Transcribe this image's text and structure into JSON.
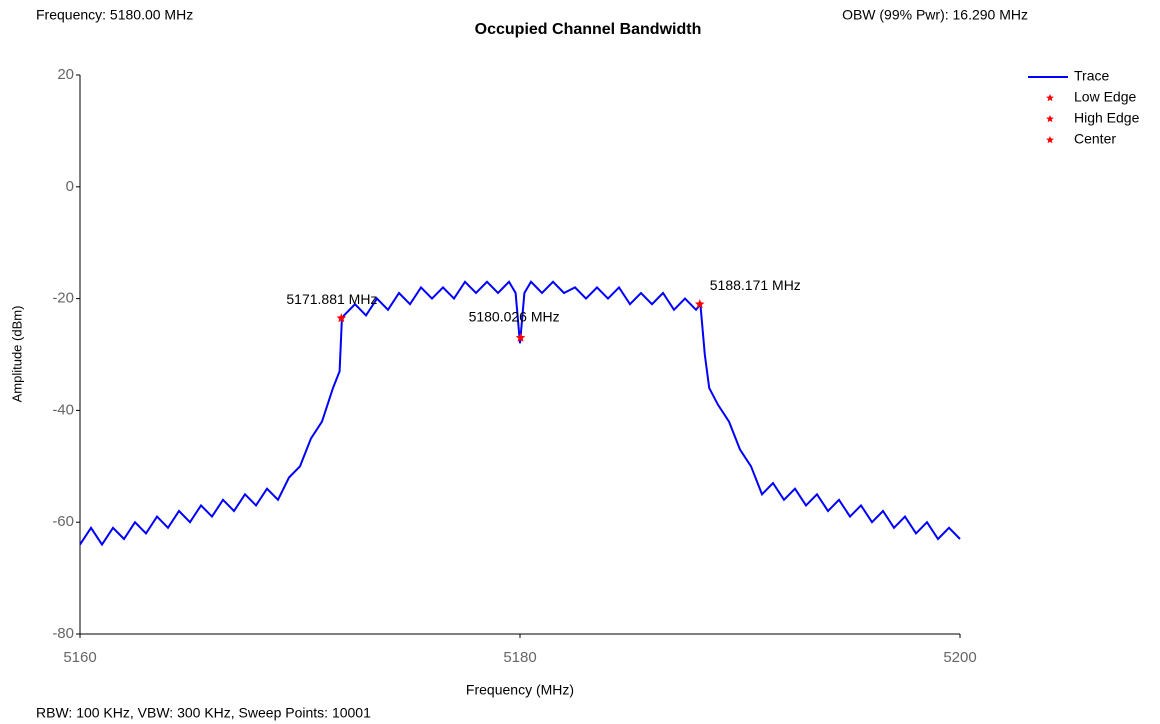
{
  "chart_data": {
    "type": "line",
    "title": "Occupied Channel Bandwidth",
    "top_left": "Frequency: 5180.00 MHz",
    "top_right": "OBW (99% Pwr): 16.290 MHz",
    "footer": "RBW: 100 KHz,  VBW: 300 KHz,  Sweep Points: 10001",
    "x_label": "Frequency (MHz)",
    "y_label": "Amplitude (dBm)",
    "xlim": [
      5160,
      5200
    ],
    "xticks": [
      5160,
      5180,
      5200
    ],
    "ylim": [
      -80,
      20
    ],
    "yticks": [
      20,
      0,
      -20,
      -40,
      -60,
      -80
    ],
    "grid": false,
    "legend": "upper right",
    "series": [
      {
        "name": "Trace",
        "color": "#0000ff",
        "x": [
          5160,
          5160.5,
          5161,
          5161.5,
          5162,
          5162.5,
          5163,
          5163.5,
          5164,
          5164.5,
          5165,
          5165.5,
          5166,
          5166.5,
          5167,
          5167.5,
          5168,
          5168.5,
          5169,
          5169.5,
          5170,
          5170.5,
          5171,
          5171.5,
          5171.8,
          5171.9,
          5172,
          5172.5,
          5173,
          5173.5,
          5174,
          5174.5,
          5175,
          5175.5,
          5176,
          5176.5,
          5177,
          5177.5,
          5178,
          5178.5,
          5179,
          5179.5,
          5179.8,
          5180,
          5180.2,
          5180.5,
          5181,
          5181.5,
          5182,
          5182.5,
          5183,
          5183.5,
          5184,
          5184.5,
          5185,
          5185.5,
          5186,
          5186.5,
          5187,
          5187.5,
          5188,
          5188.2,
          5188.4,
          5188.6,
          5189,
          5189.5,
          5190,
          5190.5,
          5191,
          5191.5,
          5192,
          5192.5,
          5193,
          5193.5,
          5194,
          5194.5,
          5195,
          5195.5,
          5196,
          5196.5,
          5197,
          5197.5,
          5198,
          5198.5,
          5199,
          5199.5,
          5200
        ],
        "values": [
          -64,
          -61,
          -64,
          -61,
          -63,
          -60,
          -62,
          -59,
          -61,
          -58,
          -60,
          -57,
          -59,
          -56,
          -58,
          -55,
          -57,
          -54,
          -56,
          -52,
          -50,
          -45,
          -42,
          -36,
          -33,
          -24,
          -23,
          -21,
          -23,
          -20,
          -22,
          -19,
          -21,
          -18,
          -20,
          -18,
          -20,
          -17,
          -19,
          -17,
          -19,
          -17,
          -19,
          -28,
          -19,
          -17,
          -19,
          -17,
          -19,
          -18,
          -20,
          -18,
          -20,
          -18,
          -21,
          -19,
          -21,
          -19,
          -22,
          -20,
          -22,
          -21,
          -30,
          -36,
          -39,
          -42,
          -47,
          -50,
          -55,
          -53,
          -56,
          -54,
          -57,
          -55,
          -58,
          -56,
          -59,
          -57,
          -60,
          -58,
          -61,
          -59,
          -62,
          -60,
          -63,
          -61,
          -63
        ]
      }
    ],
    "markers": [
      {
        "name": "Low Edge",
        "x": 5171.881,
        "y": -23.5,
        "label": "5171.881 MHz",
        "color": "#ff0000"
      },
      {
        "name": "High Edge",
        "x": 5188.171,
        "y": -21,
        "label": "5188.171 MHz",
        "color": "#ff0000"
      },
      {
        "name": "Center",
        "x": 5180.026,
        "y": -27,
        "label": "5180.026 MHz",
        "color": "#ff0000"
      }
    ]
  }
}
